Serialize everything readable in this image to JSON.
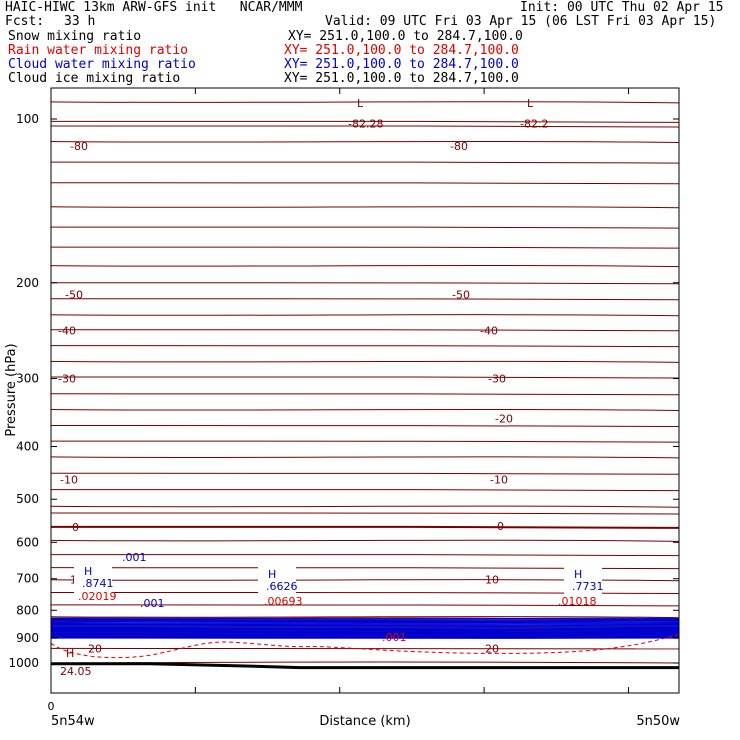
{
  "header": {
    "model_line": "HAIC-HIWC 13km ARW-GFS init   NCAR/MMM",
    "init": "Init: 00 UTC Thu 02 Apr 15",
    "fcst_label": "Fcst:",
    "fcst_value": "33 h",
    "valid": "Valid: 09 UTC Fri 03 Apr 15 (06 LST Fri 03 Apr 15)"
  },
  "fields": [
    {
      "name": "Snow mixing ratio",
      "range": "XY= 251.0,100.0 to 284.7,100.0",
      "color": "#000000"
    },
    {
      "name": "Rain water mixing ratio",
      "range": "XY= 251.0,100.0 to 284.7,100.0",
      "color": "#e00000"
    },
    {
      "name": "Cloud water mixing ratio",
      "range": "XY= 251.0,100.0 to 284.7,100.0",
      "color": "#0000cc"
    },
    {
      "name": "Cloud ice mixing ratio",
      "range": "XY= 251.0,100.0 to 284.7,100.0",
      "color": "#000000"
    }
  ],
  "colors": {
    "temperature": "#7a0000",
    "cloud_water": "#0000cc",
    "rain_water": "#e00000",
    "ground": "#000000",
    "axis": "#000000"
  },
  "chart_data": {
    "type": "line",
    "title": "",
    "xlabel": "Distance (km)",
    "ylabel": "Pressure (hPa)",
    "x_ticks": [
      "0"
    ],
    "x_endpoints": [
      "5n54w",
      "5n50w"
    ],
    "y_ticks": [
      "100",
      "200",
      "300",
      "400",
      "500",
      "600",
      "700",
      "800",
      "900",
      "1000"
    ],
    "ylim": [
      1050,
      60
    ],
    "y_scale": "log",
    "temperature_contour_labels": [
      {
        "label": "-80",
        "p": 112
      },
      {
        "label": "-82.28",
        "p": 102
      },
      {
        "label": "-80",
        "p": 111
      },
      {
        "label": "-82.2",
        "p": 102
      },
      {
        "label": "-50",
        "p": 210
      },
      {
        "label": "-50",
        "p": 210
      },
      {
        "label": "-40",
        "p": 245
      },
      {
        "label": "-40",
        "p": 245
      },
      {
        "label": "-30",
        "p": 300
      },
      {
        "label": "-30",
        "p": 300
      },
      {
        "label": "-20",
        "p": 355
      },
      {
        "label": "-10",
        "p": 460
      },
      {
        "label": "-10",
        "p": 460
      },
      {
        "label": "0",
        "p": 562
      },
      {
        "label": "0",
        "p": 560
      },
      {
        "label": "10",
        "p": 703
      },
      {
        "label": "10",
        "p": 703
      },
      {
        "label": "20",
        "p": 940
      },
      {
        "label": "20",
        "p": 940
      },
      {
        "label": "24.05",
        "p": 1000
      }
    ],
    "extrema": [
      {
        "mark": "L",
        "p": 95
      },
      {
        "mark": "L",
        "p": 95
      },
      {
        "mark": "H",
        "p": 1000
      }
    ],
    "cloud_water_maxima": [
      {
        "mark": "H",
        "value": ".8741"
      },
      {
        "mark": "H",
        "value": ".6626"
      },
      {
        "mark": "H",
        "value": ".7731"
      }
    ],
    "cloud_water_labels": [
      ".001",
      ".001"
    ],
    "rain_water_maxima": [
      ".02019",
      ".00693",
      ".01018"
    ],
    "rain_water_labels": [
      ".001"
    ]
  }
}
